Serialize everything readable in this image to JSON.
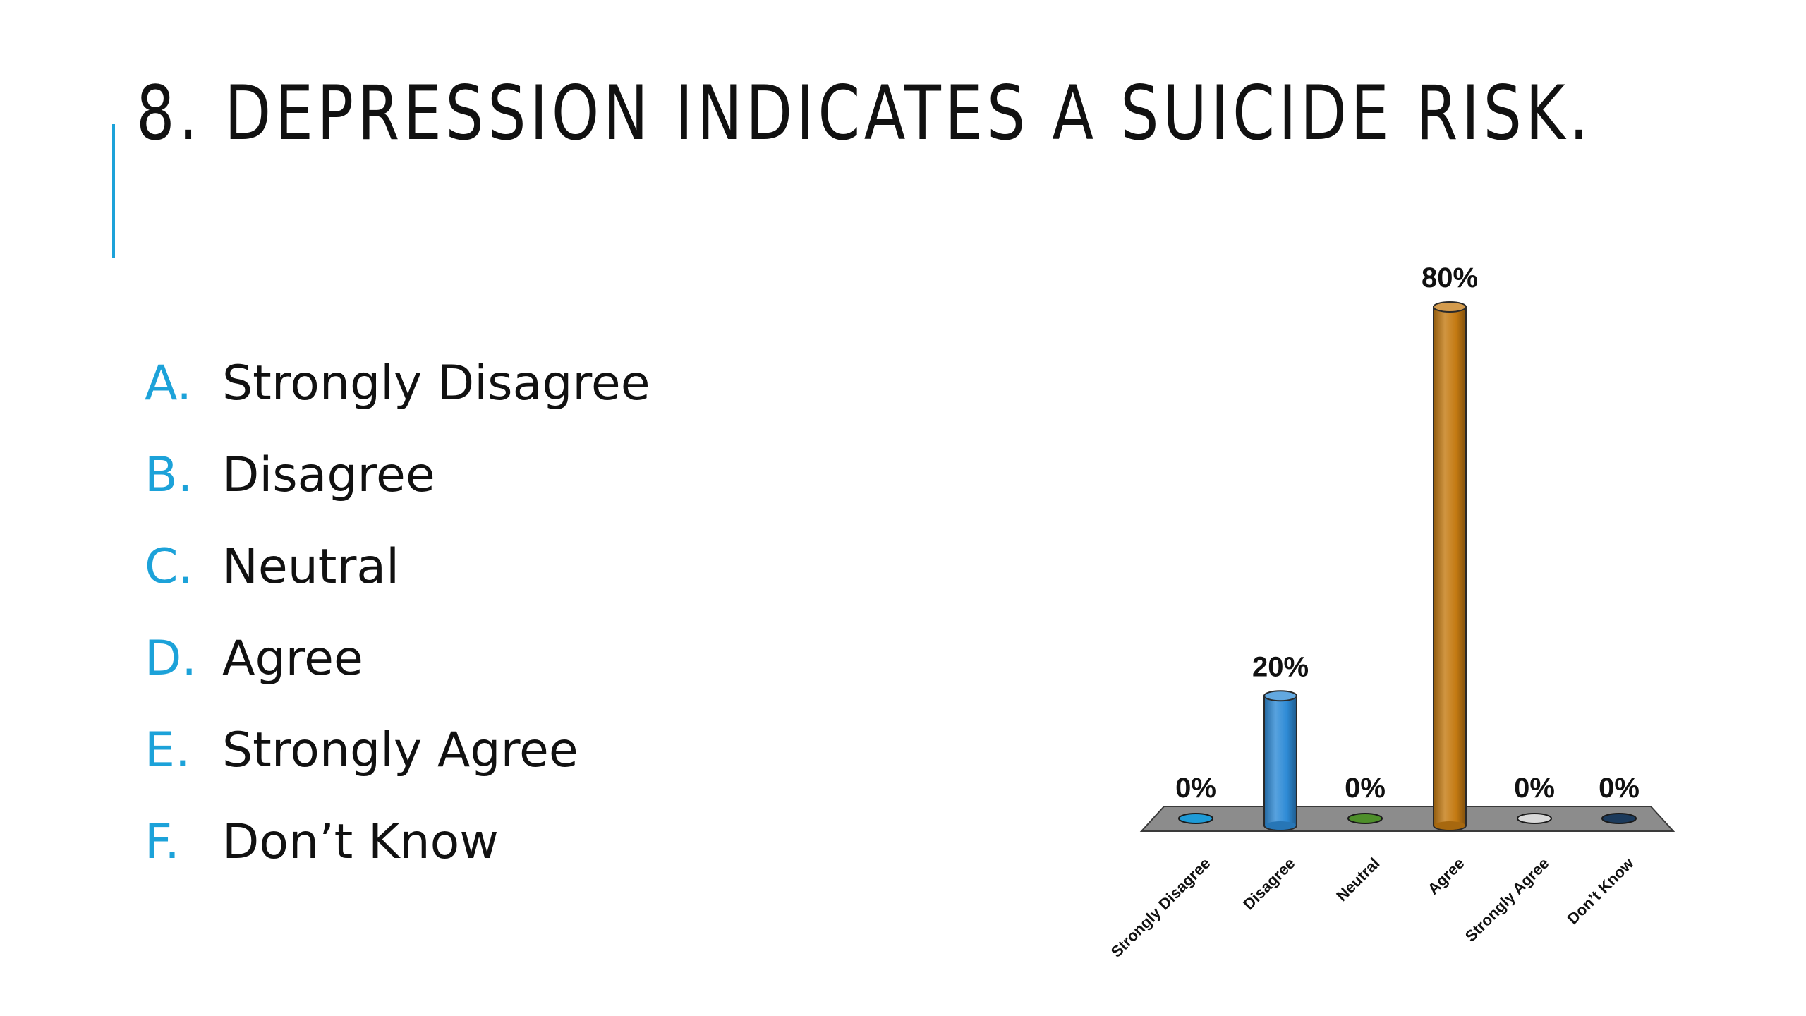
{
  "title": "8. DEPRESSION INDICATES A SUICIDE RISK.",
  "options": [
    {
      "letter": "A.",
      "label": "Strongly Disagree"
    },
    {
      "letter": "B.",
      "label": "Disagree"
    },
    {
      "letter": "C.",
      "label": "Neutral"
    },
    {
      "letter": "D.",
      "label": "Agree"
    },
    {
      "letter": "E.",
      "label": "Strongly Agree"
    },
    {
      "letter": "F.",
      "label": "Don’t Know"
    }
  ],
  "colors": {
    "accent": "#1CA2D9",
    "floor": "#8C8C8C"
  },
  "chart_data": {
    "type": "bar",
    "categories": [
      "Strongly Disagree",
      "Disagree",
      "Neutral",
      "Agree",
      "Strongly Agree",
      "Don’t Know"
    ],
    "values": [
      0,
      20,
      0,
      80,
      0,
      0
    ],
    "value_labels": [
      "0%",
      "20%",
      "0%",
      "80%",
      "0%",
      "0%"
    ],
    "colors": [
      "#1E9BD7",
      "#2E8BD6",
      "#4E8F2A",
      "#C47A12",
      "#D9D9D9",
      "#1B3A5C"
    ],
    "ylim": [
      0,
      80
    ],
    "title": "",
    "xlabel": "",
    "ylabel": "",
    "grid": false,
    "legend": "none"
  }
}
